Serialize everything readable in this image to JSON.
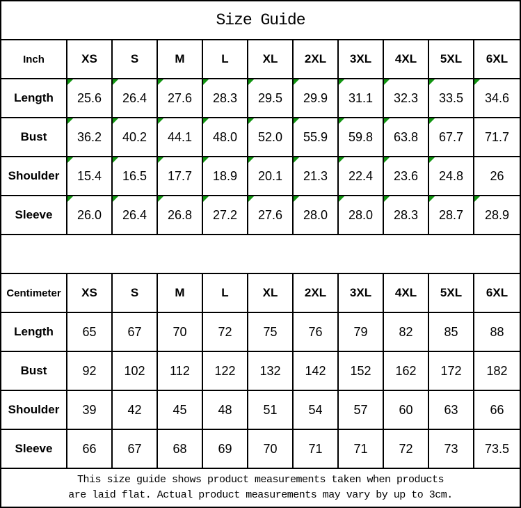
{
  "page": {
    "title": "Size Guide"
  },
  "inch_table": {
    "unit_label": "Inch",
    "columns": [
      "XS",
      "S",
      "M",
      "L",
      "XL",
      "2XL",
      "3XL",
      "4XL",
      "5XL",
      "6XL"
    ],
    "rows": [
      {
        "label": "Length",
        "values": [
          "25.6",
          "26.4",
          "27.6",
          "28.3",
          "29.5",
          "29.9",
          "31.1",
          "32.3",
          "33.5",
          "34.6"
        ],
        "markers": [
          true,
          true,
          true,
          true,
          true,
          true,
          true,
          true,
          true,
          true
        ]
      },
      {
        "label": "Bust",
        "values": [
          "36.2",
          "40.2",
          "44.1",
          "48.0",
          "52.0",
          "55.9",
          "59.8",
          "63.8",
          "67.7",
          "71.7"
        ],
        "markers": [
          true,
          true,
          true,
          true,
          true,
          true,
          true,
          true,
          true,
          false
        ]
      },
      {
        "label": "Shoulder",
        "values": [
          "15.4",
          "16.5",
          "17.7",
          "18.9",
          "20.1",
          "21.3",
          "22.4",
          "23.6",
          "24.8",
          "26"
        ],
        "markers": [
          true,
          true,
          true,
          true,
          true,
          true,
          true,
          true,
          true,
          false
        ]
      },
      {
        "label": "Sleeve",
        "values": [
          "26.0",
          "26.4",
          "26.8",
          "27.2",
          "27.6",
          "28.0",
          "28.0",
          "28.3",
          "28.7",
          "28.9"
        ],
        "markers": [
          true,
          true,
          true,
          true,
          true,
          true,
          true,
          true,
          true,
          true
        ]
      }
    ]
  },
  "cm_table": {
    "unit_label": "Centimeter",
    "columns": [
      "XS",
      "S",
      "M",
      "L",
      "XL",
      "2XL",
      "3XL",
      "4XL",
      "5XL",
      "6XL"
    ],
    "rows": [
      {
        "label": "Length",
        "values": [
          "65",
          "67",
          "70",
          "72",
          "75",
          "76",
          "79",
          "82",
          "85",
          "88"
        ],
        "markers": [
          false,
          false,
          false,
          false,
          false,
          false,
          false,
          false,
          false,
          false
        ]
      },
      {
        "label": "Bust",
        "values": [
          "92",
          "102",
          "112",
          "122",
          "132",
          "142",
          "152",
          "162",
          "172",
          "182"
        ],
        "markers": [
          false,
          false,
          false,
          false,
          false,
          false,
          false,
          false,
          false,
          false
        ]
      },
      {
        "label": "Shoulder",
        "values": [
          "39",
          "42",
          "45",
          "48",
          "51",
          "54",
          "57",
          "60",
          "63",
          "66"
        ],
        "markers": [
          false,
          false,
          false,
          false,
          false,
          false,
          false,
          false,
          false,
          false
        ]
      },
      {
        "label": "Sleeve",
        "values": [
          "66",
          "67",
          "68",
          "69",
          "70",
          "71",
          "71",
          "72",
          "73",
          "73.5"
        ],
        "markers": [
          false,
          false,
          false,
          false,
          false,
          false,
          false,
          false,
          false,
          false
        ]
      }
    ]
  },
  "footer": {
    "line1": "This size guide shows product measurements taken when products",
    "line2": "are laid flat. Actual product measurements may vary by up to 3cm."
  },
  "colors": {
    "border": "#000000",
    "marker_green": "#129612",
    "text": "#000000",
    "background": "#ffffff"
  }
}
